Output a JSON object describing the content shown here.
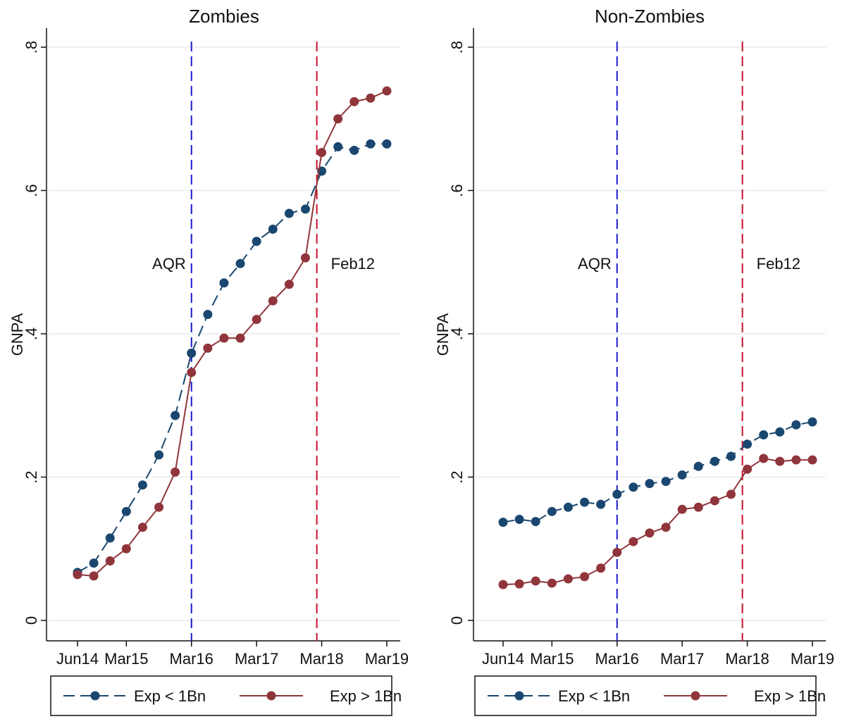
{
  "chart_data": [
    {
      "type": "line",
      "title": "Zombies",
      "xlabel": "",
      "ylabel": "GNPA",
      "ylim": [
        0,
        0.8
      ],
      "yticks": [
        0,
        0.2,
        0.4,
        0.6,
        0.8
      ],
      "ytick_labels": [
        "0",
        ".2",
        ".4",
        ".6",
        ".8"
      ],
      "x": [
        0,
        1,
        2,
        3,
        4,
        5,
        6,
        7,
        8,
        9,
        10,
        11,
        12,
        13,
        14,
        15,
        16,
        17,
        18,
        19
      ],
      "xlim": [
        0,
        19
      ],
      "xticks": [
        0,
        3,
        7,
        11,
        15,
        19
      ],
      "xtick_labels": [
        "Jun14",
        "Mar15",
        "Mar16",
        "Mar17",
        "Mar18",
        "Mar19"
      ],
      "vlines": [
        {
          "x": 7,
          "label": "AQR",
          "color": "#1a1acc",
          "label_side": "left"
        },
        {
          "x": 14.7,
          "label": "Feb12",
          "color": "#c8102e",
          "label_side": "right"
        }
      ],
      "series": [
        {
          "name": "Exp < 1Bn",
          "color": "#1a476f",
          "style": "dashed",
          "values": [
            0.067,
            0.08,
            0.115,
            0.152,
            0.189,
            0.231,
            0.286,
            0.373,
            0.427,
            0.471,
            0.498,
            0.529,
            0.546,
            0.568,
            0.574,
            0.627,
            0.661,
            0.656,
            0.665,
            0.665
          ]
        },
        {
          "name": "Exp > 1Bn",
          "color": "#90353b",
          "style": "solid",
          "values": [
            0.064,
            0.062,
            0.083,
            0.1,
            0.13,
            0.158,
            0.207,
            0.346,
            0.38,
            0.394,
            0.394,
            0.42,
            0.446,
            0.469,
            0.506,
            0.653,
            0.7,
            0.724,
            0.729,
            0.739
          ]
        }
      ],
      "legend_position": "bottom"
    },
    {
      "type": "line",
      "title": "Non-Zombies",
      "xlabel": "",
      "ylabel": "GNPA",
      "ylim": [
        0,
        0.8
      ],
      "yticks": [
        0,
        0.2,
        0.4,
        0.6,
        0.8
      ],
      "ytick_labels": [
        "0",
        ".2",
        ".4",
        ".6",
        ".8"
      ],
      "x": [
        0,
        1,
        2,
        3,
        4,
        5,
        6,
        7,
        8,
        9,
        10,
        11,
        12,
        13,
        14,
        15,
        16,
        17,
        18,
        19
      ],
      "xlim": [
        0,
        19
      ],
      "xticks": [
        0,
        3,
        7,
        11,
        15,
        19
      ],
      "xtick_labels": [
        "Jun14",
        "Mar15",
        "Mar16",
        "Mar17",
        "Mar18",
        "Mar19"
      ],
      "vlines": [
        {
          "x": 7,
          "label": "AQR",
          "color": "#1a1acc",
          "label_side": "left"
        },
        {
          "x": 14.7,
          "label": "Feb12",
          "color": "#c8102e",
          "label_side": "right"
        }
      ],
      "series": [
        {
          "name": "Exp < 1Bn",
          "color": "#1a476f",
          "style": "dashed",
          "values": [
            0.137,
            0.141,
            0.138,
            0.152,
            0.158,
            0.165,
            0.162,
            0.176,
            0.186,
            0.191,
            0.194,
            0.203,
            0.215,
            0.222,
            0.229,
            0.246,
            0.259,
            0.263,
            0.273,
            0.277
          ]
        },
        {
          "name": "Exp > 1Bn",
          "color": "#90353b",
          "style": "solid",
          "values": [
            0.05,
            0.051,
            0.055,
            0.052,
            0.058,
            0.061,
            0.073,
            0.095,
            0.11,
            0.122,
            0.13,
            0.155,
            0.158,
            0.167,
            0.176,
            0.211,
            0.226,
            0.222,
            0.224,
            0.224
          ]
        }
      ],
      "legend_position": "bottom"
    }
  ]
}
